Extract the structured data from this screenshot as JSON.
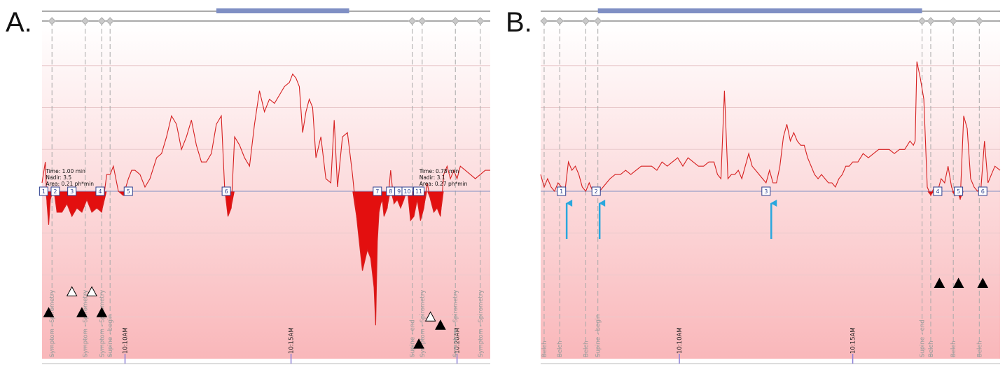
{
  "panels": [
    {
      "label": "A.",
      "supine_bar": [
        10.5,
        18.5
      ],
      "markers": [
        {
          "x": 0.6,
          "text": "Symptom - Spirometry"
        },
        {
          "x": 2.6,
          "text": "Symptom - Spirometry"
        },
        {
          "x": 3.6,
          "text": "Symptom - Spirometry"
        },
        {
          "x": 4.1,
          "text": "Supine - begin"
        },
        {
          "x": 22.3,
          "text": "Supine - end"
        },
        {
          "x": 22.9,
          "text": "Symptom - Spirometry"
        },
        {
          "x": 24.9,
          "text": "Symptom - Spirometry"
        },
        {
          "x": 26.4,
          "text": "Symptom - Spirometry"
        }
      ],
      "time_ticks": [
        {
          "x": 5.0,
          "label": "10:10AM"
        },
        {
          "x": 15.0,
          "label": "10:15AM"
        },
        {
          "x": 25.0,
          "label": "10:20AM"
        }
      ],
      "events": [
        {
          "x": 0.1,
          "label": "1"
        },
        {
          "x": 0.8,
          "label": "2"
        },
        {
          "x": 1.8,
          "label": "3"
        },
        {
          "x": 3.5,
          "label": "4"
        },
        {
          "x": 5.2,
          "label": "5"
        },
        {
          "x": 11.1,
          "label": "6"
        },
        {
          "x": 20.2,
          "label": "7"
        },
        {
          "x": 21.0,
          "label": "8"
        },
        {
          "x": 21.5,
          "label": "9"
        },
        {
          "x": 22.0,
          "label": "10"
        },
        {
          "x": 22.7,
          "label": "11"
        }
      ],
      "annotations": [
        {
          "x": 0.1,
          "lines": [
            "Time: 1.00 min",
            "Nadir: 3.5",
            "Area: 0.21 ph*min"
          ]
        },
        {
          "x": 22.6,
          "lines": [
            "Time: 0.78 min",
            "Nadir: 3.1",
            "Area: 0.27 ph*min"
          ]
        }
      ],
      "symbols": [
        {
          "x": 0.4,
          "kind": "filled",
          "y": 1.1
        },
        {
          "x": 1.8,
          "kind": "open",
          "y": 1.6
        },
        {
          "x": 2.4,
          "kind": "filled",
          "y": 1.1
        },
        {
          "x": 3.0,
          "kind": "open",
          "y": 1.6
        },
        {
          "x": 3.6,
          "kind": "filled",
          "y": 1.1
        },
        {
          "x": 22.7,
          "kind": "filled",
          "y": 0.35
        },
        {
          "x": 23.4,
          "kind": "open",
          "y": 1.0
        },
        {
          "x": 24.0,
          "kind": "filled",
          "y": 0.8
        }
      ],
      "arrows": []
    },
    {
      "label": "B.",
      "supine_bar": [
        3.3,
        22.0
      ],
      "markers": [
        {
          "x": 0.2,
          "text": "Belch"
        },
        {
          "x": 1.1,
          "text": "Belch"
        },
        {
          "x": 2.6,
          "text": "Belch"
        },
        {
          "x": 3.3,
          "text": "Supine - begin"
        },
        {
          "x": 22.0,
          "text": "Supine - end"
        },
        {
          "x": 22.5,
          "text": "Belch"
        },
        {
          "x": 23.8,
          "text": "Belch"
        },
        {
          "x": 25.3,
          "text": "Belch"
        }
      ],
      "time_ticks": [
        {
          "x": 8.0,
          "label": "10:10AM"
        },
        {
          "x": 18.0,
          "label": "10:15AM"
        }
      ],
      "events": [
        {
          "x": 1.2,
          "label": "1"
        },
        {
          "x": 3.2,
          "label": "2"
        },
        {
          "x": 13.0,
          "label": "3"
        },
        {
          "x": 22.9,
          "label": "4"
        },
        {
          "x": 24.1,
          "label": "5"
        },
        {
          "x": 25.5,
          "label": "6"
        }
      ],
      "annotations": [],
      "symbols": [
        {
          "x": 23.0,
          "kind": "filled",
          "y": 1.8
        },
        {
          "x": 24.1,
          "kind": "filled",
          "y": 1.8
        },
        {
          "x": 25.5,
          "kind": "filled",
          "y": 1.8
        }
      ],
      "arrows": [
        {
          "x": 1.5
        },
        {
          "x": 3.4
        },
        {
          "x": 13.3
        }
      ]
    }
  ],
  "chart_data": [
    {
      "type": "line",
      "panel": "A.",
      "xlim": [
        0,
        27
      ],
      "ylim": [
        0,
        8
      ],
      "threshold": 4,
      "series": [
        {
          "x": [
            0,
            0.2,
            0.3,
            0.4,
            0.5,
            0.7,
            0.9,
            1.2,
            1.5,
            1.8,
            2.1,
            2.4,
            2.7,
            3.0,
            3.3,
            3.6,
            3.9,
            4.1,
            4.3,
            4.6,
            4.9,
            5.2,
            5.4,
            5.6,
            5.9,
            6.2,
            6.5,
            6.9,
            7.2,
            7.5,
            7.8,
            8.1,
            8.4,
            8.7,
            9.0,
            9.3,
            9.6,
            9.9,
            10.2,
            10.5,
            10.8,
            11.0,
            11.2,
            11.4,
            11.6,
            11.9,
            12.2,
            12.5,
            12.8,
            13.1,
            13.4,
            13.7,
            14.0,
            14.3,
            14.6,
            14.9,
            15.1,
            15.3,
            15.5,
            15.7,
            15.9,
            16.1,
            16.3,
            16.5,
            16.8,
            17.1,
            17.4,
            17.6,
            17.8,
            18.1,
            18.4,
            18.7,
            19.0,
            19.3,
            19.6,
            19.8,
            20.0,
            20.1,
            20.2,
            20.3,
            20.4,
            20.5,
            20.6,
            20.8,
            21.0,
            21.2,
            21.4,
            21.6,
            21.8,
            22.0,
            22.2,
            22.4,
            22.6,
            22.8,
            23.0,
            23.2,
            23.4,
            23.6,
            23.8,
            24.0,
            24.2,
            24.4,
            24.6,
            24.8,
            25.0,
            25.2,
            25.5,
            25.8,
            26.1,
            26.4,
            26.7,
            27.0
          ],
          "y": [
            4.2,
            4.7,
            3.7,
            3.2,
            3.8,
            4.1,
            3.5,
            3.5,
            3.7,
            3.4,
            3.6,
            3.5,
            3.8,
            3.5,
            3.6,
            3.5,
            4.4,
            4.4,
            4.6,
            4.0,
            3.9,
            4.3,
            4.5,
            4.5,
            4.4,
            4.1,
            4.3,
            4.8,
            4.9,
            5.3,
            5.8,
            5.6,
            5.0,
            5.3,
            5.7,
            5.1,
            4.7,
            4.7,
            4.9,
            5.6,
            5.8,
            4.1,
            3.4,
            3.6,
            5.3,
            5.1,
            4.8,
            4.6,
            5.6,
            6.4,
            5.9,
            6.2,
            6.1,
            6.3,
            6.5,
            6.6,
            6.8,
            6.7,
            6.5,
            5.4,
            5.9,
            6.2,
            6.0,
            4.8,
            5.3,
            4.3,
            4.2,
            5.7,
            4.1,
            5.3,
            5.4,
            4.4,
            3.2,
            2.1,
            2.6,
            2.4,
            1.7,
            0.8,
            2.8,
            3.5,
            3.7,
            3.8,
            3.4,
            3.6,
            4.5,
            3.7,
            3.8,
            3.6,
            3.8,
            4.1,
            3.3,
            3.4,
            3.8,
            3.3,
            3.6,
            4.2,
            3.8,
            3.5,
            3.6,
            3.4,
            4.4,
            4.6,
            4.3,
            4.5,
            4.3,
            4.6,
            4.5,
            4.4,
            4.3,
            4.4,
            4.5,
            4.5
          ]
        }
      ]
    },
    {
      "type": "line",
      "panel": "B.",
      "xlim": [
        0,
        26.5
      ],
      "ylim": [
        0,
        8
      ],
      "threshold": 4,
      "series": [
        {
          "x": [
            0,
            0.2,
            0.4,
            0.6,
            0.8,
            1.0,
            1.2,
            1.4,
            1.6,
            1.8,
            2.0,
            2.2,
            2.4,
            2.6,
            2.8,
            3.0,
            3.2,
            3.4,
            3.6,
            3.8,
            4.0,
            4.3,
            4.6,
            4.9,
            5.2,
            5.5,
            5.8,
            6.1,
            6.4,
            6.7,
            7.0,
            7.3,
            7.6,
            7.9,
            8.2,
            8.5,
            8.8,
            9.1,
            9.4,
            9.7,
            10.0,
            10.2,
            10.4,
            10.6,
            10.8,
            11.0,
            11.2,
            11.4,
            11.6,
            11.8,
            12.0,
            12.2,
            12.4,
            12.6,
            12.8,
            13.0,
            13.2,
            13.4,
            13.6,
            13.8,
            14.0,
            14.2,
            14.4,
            14.6,
            14.8,
            15.0,
            15.2,
            15.4,
            15.6,
            15.8,
            16.0,
            16.2,
            16.4,
            16.6,
            16.8,
            17.0,
            17.2,
            17.4,
            17.6,
            17.8,
            18.0,
            18.3,
            18.6,
            18.9,
            19.2,
            19.5,
            19.8,
            20.1,
            20.4,
            20.7,
            21.0,
            21.3,
            21.5,
            21.6,
            21.7,
            21.9,
            22.1,
            22.3,
            22.5,
            22.7,
            22.9,
            23.1,
            23.3,
            23.5,
            23.7,
            23.9,
            24.0,
            24.2,
            24.4,
            24.6,
            24.8,
            25.0,
            25.2,
            25.4,
            25.6,
            25.8,
            26.0,
            26.2,
            26.5
          ],
          "y": [
            4.4,
            4.1,
            4.3,
            4.1,
            4.0,
            4.2,
            4.1,
            4.0,
            4.7,
            4.5,
            4.6,
            4.4,
            4.1,
            4.0,
            4.2,
            4.0,
            3.9,
            4.0,
            4.1,
            4.2,
            4.3,
            4.4,
            4.4,
            4.5,
            4.4,
            4.5,
            4.6,
            4.6,
            4.6,
            4.5,
            4.7,
            4.6,
            4.7,
            4.8,
            4.6,
            4.8,
            4.7,
            4.6,
            4.6,
            4.7,
            4.7,
            4.4,
            4.3,
            6.4,
            4.3,
            4.4,
            4.4,
            4.5,
            4.3,
            4.6,
            4.9,
            4.6,
            4.5,
            4.4,
            4.3,
            4.2,
            4.5,
            4.2,
            4.2,
            4.6,
            5.3,
            5.6,
            5.2,
            5.4,
            5.2,
            5.1,
            5.1,
            4.8,
            4.6,
            4.4,
            4.3,
            4.4,
            4.3,
            4.2,
            4.2,
            4.1,
            4.3,
            4.4,
            4.6,
            4.6,
            4.7,
            4.7,
            4.9,
            4.8,
            4.9,
            5.0,
            5.0,
            5.0,
            4.9,
            5.0,
            5.0,
            5.2,
            5.1,
            5.2,
            7.1,
            6.7,
            6.2,
            4.1,
            3.9,
            4.1,
            4.0,
            4.3,
            4.2,
            4.6,
            4.1,
            3.9,
            4.1,
            3.8,
            5.8,
            5.5,
            4.3,
            4.1,
            4.0,
            4.1,
            5.2,
            4.2,
            4.4,
            4.6,
            4.5
          ]
        }
      ]
    }
  ]
}
